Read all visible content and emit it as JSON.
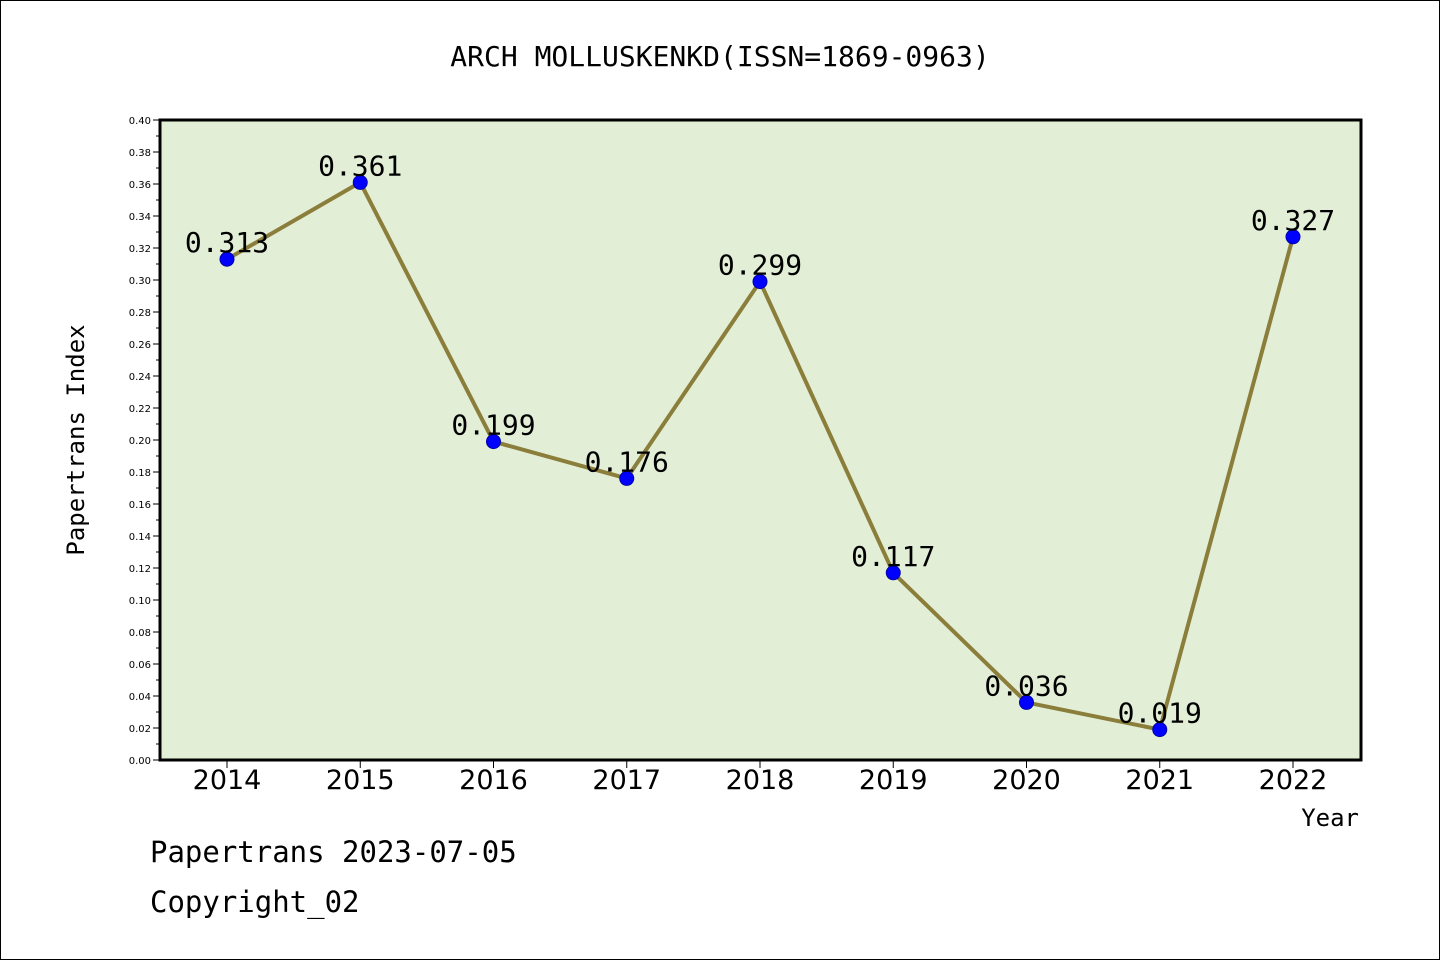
{
  "chart_data": {
    "type": "line",
    "title": "ARCH MOLLUSKENKD(ISSN=1869-0963)",
    "xlabel": "Year",
    "ylabel": "Papertrans Index",
    "categories": [
      "2014",
      "2015",
      "2016",
      "2017",
      "2018",
      "2019",
      "2020",
      "2021",
      "2022"
    ],
    "series": [
      {
        "values": [
          0.313,
          0.361,
          0.199,
          0.176,
          0.299,
          0.117,
          0.036,
          0.019,
          0.327
        ]
      }
    ],
    "data_labels": [
      "0.313",
      "0.361",
      "0.199",
      "0.176",
      "0.299",
      "0.117",
      "0.036",
      "0.019",
      "0.327"
    ],
    "ylim": [
      0,
      0.4
    ],
    "yticks": [
      "0.00",
      "0.02",
      "0.04",
      "0.06",
      "0.08",
      "0.10",
      "0.12",
      "0.14",
      "0.16",
      "0.18",
      "0.20",
      "0.22",
      "0.24",
      "0.26",
      "0.28",
      "0.30",
      "0.32",
      "0.34",
      "0.36",
      "0.38",
      "0.40"
    ],
    "grid": false,
    "colors": {
      "plot_background": "#e2efd6",
      "line": "#8b7d3a",
      "marker": "#0000ff",
      "axes": "#000000"
    }
  },
  "footer": {
    "source_line": "Papertrans 2023-07-05",
    "copyright_line": "Copyright_02"
  }
}
